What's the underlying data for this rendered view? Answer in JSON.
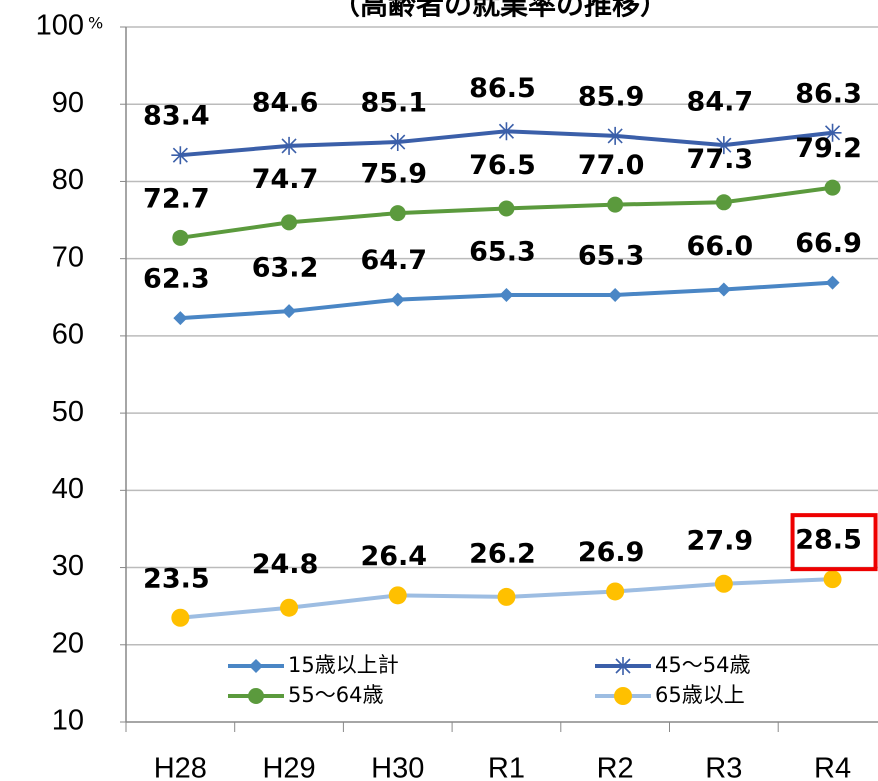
{
  "chart_data": {
    "type": "line",
    "title": "（高齢者の就業率の推移）",
    "unit": "%",
    "categories": [
      "H28",
      "H29",
      "H30",
      "R1",
      "R2",
      "R3",
      "R4"
    ],
    "series": [
      {
        "name": "15歳以上計",
        "color": "#4a86c5",
        "marker": "diamond",
        "marker_color": "#4a86c5",
        "values": [
          62.3,
          63.2,
          64.7,
          65.3,
          65.3,
          66.0,
          66.9
        ],
        "value_labels": [
          "62.3",
          "63.2",
          "64.7",
          "65.3",
          "65.3",
          "66.0",
          "66.9"
        ]
      },
      {
        "name": "45〜54歳",
        "color": "#3b5fa9",
        "marker": "asterisk",
        "marker_color": "#3b5fa9",
        "values": [
          83.4,
          84.6,
          85.1,
          86.5,
          85.9,
          84.7,
          86.3
        ],
        "value_labels": [
          "83.4",
          "84.6",
          "85.1",
          "86.5",
          "85.9",
          "84.7",
          "86.3"
        ]
      },
      {
        "name": "55〜64歳",
        "color": "#5b9a3d",
        "marker": "circle",
        "marker_color": "#5b9a3d",
        "values": [
          72.7,
          74.7,
          75.9,
          76.5,
          77.0,
          77.3,
          79.2
        ],
        "value_labels": [
          "72.7",
          "74.7",
          "75.9",
          "76.5",
          "77.0",
          "77.3",
          "79.2"
        ]
      },
      {
        "name": "65歳以上",
        "color": "#9dbde2",
        "marker": "circle",
        "marker_color": "#ffc000",
        "values": [
          23.5,
          24.8,
          26.4,
          26.2,
          26.9,
          27.9,
          28.5
        ],
        "value_labels": [
          "23.5",
          "24.8",
          "26.4",
          "26.2",
          "26.9",
          "27.9",
          "28.5"
        ]
      }
    ],
    "ylim": [
      10,
      100
    ],
    "yticks": [
      10,
      20,
      30,
      40,
      50,
      60,
      70,
      80,
      90,
      100
    ],
    "grid": true,
    "legend": "bottom"
  }
}
